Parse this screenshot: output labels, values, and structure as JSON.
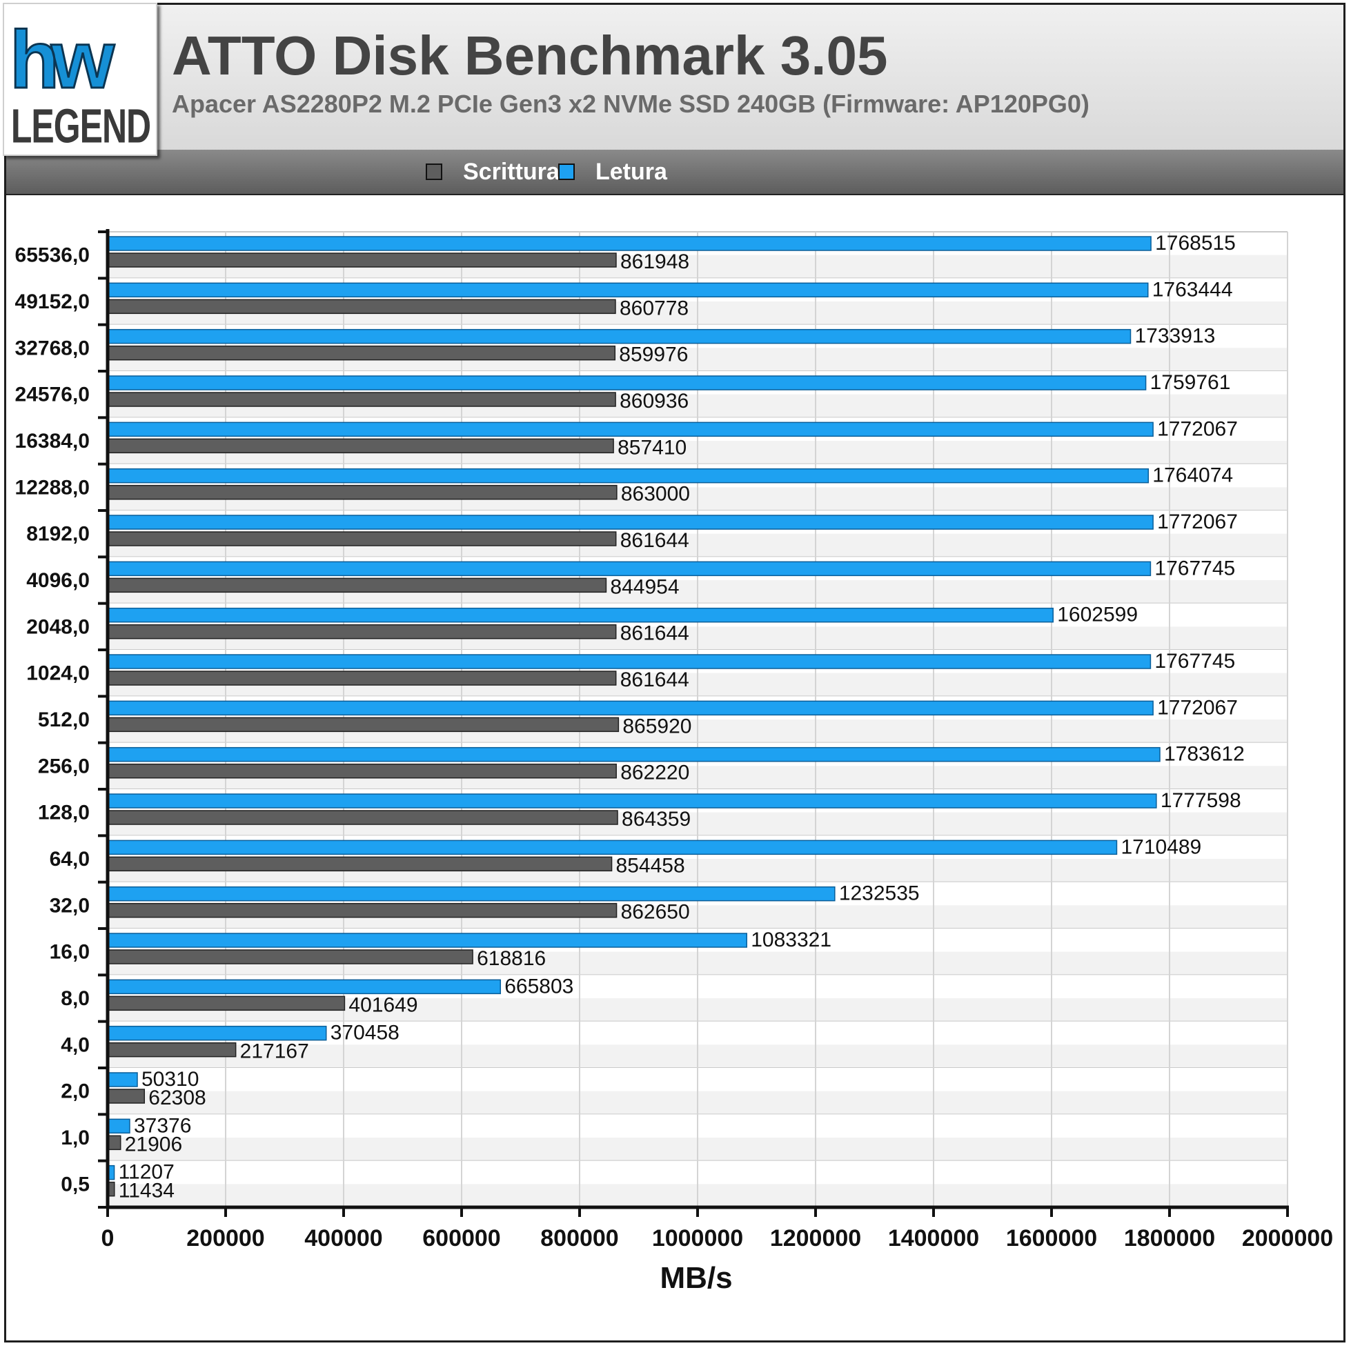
{
  "logo": {
    "mark": "hw",
    "word": "LEGEND"
  },
  "colors": {
    "write": "#5e5e5e",
    "read": "#1ea1f1",
    "read_stroke": "#0a5e99",
    "write_stroke": "#222222"
  },
  "chart_data": {
    "type": "bar",
    "orientation": "horizontal",
    "title": "ATTO Disk Benchmark 3.05",
    "subtitle": "Apacer AS2280P2 M.2 PCIe Gen3 x2 NVMe SSD 240GB (Firmware: AP120PG0)",
    "xlabel": "MB/s",
    "ylabel": "",
    "xlim": [
      0,
      2000000
    ],
    "xticks": [
      "0",
      "200000",
      "400000",
      "600000",
      "800000",
      "1000000",
      "1200000",
      "1400000",
      "1600000",
      "1800000",
      "2000000"
    ],
    "xtick_values": [
      0,
      200000,
      400000,
      600000,
      800000,
      1000000,
      1200000,
      1400000,
      1600000,
      1800000,
      2000000
    ],
    "legend_position": "top",
    "grid": true,
    "categories": [
      "65536,0",
      "49152,0",
      "32768,0",
      "24576,0",
      "16384,0",
      "12288,0",
      "8192,0",
      "4096,0",
      "2048,0",
      "1024,0",
      "512,0",
      "256,0",
      "128,0",
      "64,0",
      "32,0",
      "16,0",
      "8,0",
      "4,0",
      "2,0",
      "1,0",
      "0,5"
    ],
    "series": [
      {
        "name": "Scrittura",
        "values": [
          861948,
          860778,
          859976,
          860936,
          857410,
          863000,
          861644,
          844954,
          861644,
          861644,
          865920,
          862220,
          864359,
          854458,
          862650,
          618816,
          401649,
          217167,
          62308,
          21906,
          11434
        ]
      },
      {
        "name": "Letura",
        "values": [
          1768515,
          1763444,
          1733913,
          1759761,
          1772067,
          1764074,
          1772067,
          1767745,
          1602599,
          1767745,
          1772067,
          1783612,
          1777598,
          1710489,
          1232535,
          1083321,
          665803,
          370458,
          50310,
          37376,
          11207
        ]
      }
    ]
  }
}
